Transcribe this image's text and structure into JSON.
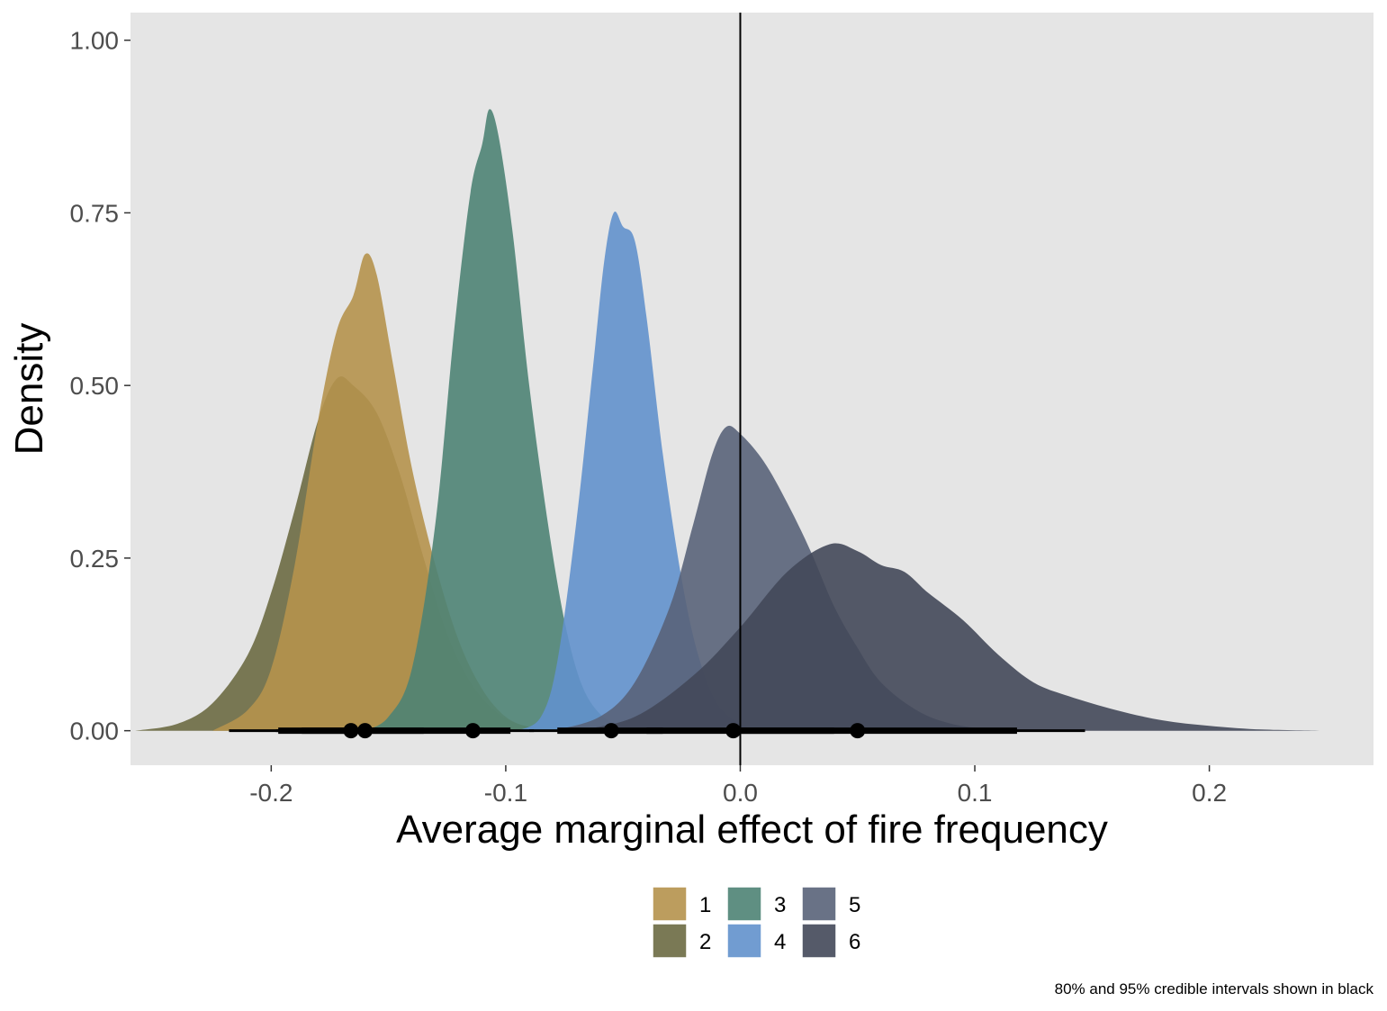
{
  "chart_data": {
    "type": "area",
    "xlabel": "Average marginal effect of fire frequency",
    "ylabel": "Density",
    "caption": "80% and 95% credible intervals shown in black",
    "xlim": [
      -0.26,
      0.27
    ],
    "ylim": [
      -0.05,
      1.04
    ],
    "x_ticks": [
      -0.2,
      -0.1,
      0.0,
      0.1,
      0.2
    ],
    "x_tick_labels": [
      "-0.2",
      "-0.1",
      "0.0",
      "0.1",
      "0.2"
    ],
    "y_ticks": [
      0,
      0.25,
      0.5,
      0.75,
      1.0
    ],
    "y_tick_labels": [
      "0.00",
      "0.25",
      "0.50",
      "0.75",
      "1.00"
    ],
    "vline_x": 0.0,
    "panel_background": "#e5e5e5",
    "grid": false,
    "legend_position": "bottom",
    "series": [
      {
        "name": "2",
        "color": "#6b6a42",
        "points": [
          [
            -0.258,
            0
          ],
          [
            -0.24,
            0.01
          ],
          [
            -0.225,
            0.04
          ],
          [
            -0.21,
            0.11
          ],
          [
            -0.2,
            0.2
          ],
          [
            -0.19,
            0.32
          ],
          [
            -0.18,
            0.45
          ],
          [
            -0.172,
            0.51
          ],
          [
            -0.165,
            0.5
          ],
          [
            -0.155,
            0.46
          ],
          [
            -0.145,
            0.37
          ],
          [
            -0.135,
            0.25
          ],
          [
            -0.125,
            0.14
          ],
          [
            -0.115,
            0.07
          ],
          [
            -0.105,
            0.03
          ],
          [
            -0.095,
            0.01
          ],
          [
            -0.08,
            0
          ]
        ]
      },
      {
        "name": "1",
        "color": "#b5924c",
        "points": [
          [
            -0.225,
            0
          ],
          [
            -0.21,
            0.03
          ],
          [
            -0.2,
            0.09
          ],
          [
            -0.19,
            0.24
          ],
          [
            -0.18,
            0.45
          ],
          [
            -0.172,
            0.58
          ],
          [
            -0.165,
            0.63
          ],
          [
            -0.16,
            0.69
          ],
          [
            -0.155,
            0.66
          ],
          [
            -0.148,
            0.53
          ],
          [
            -0.14,
            0.38
          ],
          [
            -0.13,
            0.24
          ],
          [
            -0.12,
            0.13
          ],
          [
            -0.11,
            0.06
          ],
          [
            -0.1,
            0.02
          ],
          [
            -0.09,
            0.005
          ],
          [
            -0.08,
            0
          ]
        ]
      },
      {
        "name": "3",
        "color": "#4e8374",
        "points": [
          [
            -0.16,
            0
          ],
          [
            -0.15,
            0.02
          ],
          [
            -0.14,
            0.09
          ],
          [
            -0.13,
            0.3
          ],
          [
            -0.122,
            0.58
          ],
          [
            -0.115,
            0.78
          ],
          [
            -0.11,
            0.85
          ],
          [
            -0.107,
            0.9
          ],
          [
            -0.103,
            0.86
          ],
          [
            -0.097,
            0.72
          ],
          [
            -0.09,
            0.5
          ],
          [
            -0.082,
            0.3
          ],
          [
            -0.075,
            0.16
          ],
          [
            -0.068,
            0.07
          ],
          [
            -0.06,
            0.025
          ],
          [
            -0.05,
            0.005
          ],
          [
            -0.04,
            0
          ]
        ]
      },
      {
        "name": "4",
        "color": "#6291cc",
        "points": [
          [
            -0.095,
            0
          ],
          [
            -0.085,
            0.02
          ],
          [
            -0.078,
            0.1
          ],
          [
            -0.07,
            0.3
          ],
          [
            -0.063,
            0.52
          ],
          [
            -0.058,
            0.68
          ],
          [
            -0.054,
            0.75
          ],
          [
            -0.05,
            0.73
          ],
          [
            -0.045,
            0.71
          ],
          [
            -0.04,
            0.6
          ],
          [
            -0.033,
            0.4
          ],
          [
            -0.025,
            0.22
          ],
          [
            -0.018,
            0.11
          ],
          [
            -0.01,
            0.04
          ],
          [
            0.0,
            0.01
          ],
          [
            0.01,
            0
          ]
        ]
      },
      {
        "name": "5",
        "color": "#596379",
        "points": [
          [
            -0.08,
            0
          ],
          [
            -0.06,
            0.02
          ],
          [
            -0.045,
            0.07
          ],
          [
            -0.03,
            0.18
          ],
          [
            -0.02,
            0.3
          ],
          [
            -0.012,
            0.4
          ],
          [
            -0.006,
            0.44
          ],
          [
            0.0,
            0.43
          ],
          [
            0.01,
            0.39
          ],
          [
            0.02,
            0.33
          ],
          [
            0.03,
            0.26
          ],
          [
            0.04,
            0.18
          ],
          [
            0.05,
            0.12
          ],
          [
            0.06,
            0.07
          ],
          [
            0.075,
            0.03
          ],
          [
            0.09,
            0.01
          ],
          [
            0.11,
            0
          ]
        ]
      },
      {
        "name": "6",
        "color": "#434859",
        "points": [
          [
            -0.07,
            0
          ],
          [
            -0.045,
            0.02
          ],
          [
            -0.02,
            0.08
          ],
          [
            0.0,
            0.15
          ],
          [
            0.02,
            0.23
          ],
          [
            0.038,
            0.27
          ],
          [
            0.05,
            0.26
          ],
          [
            0.06,
            0.24
          ],
          [
            0.07,
            0.23
          ],
          [
            0.08,
            0.2
          ],
          [
            0.095,
            0.16
          ],
          [
            0.11,
            0.11
          ],
          [
            0.125,
            0.07
          ],
          [
            0.14,
            0.05
          ],
          [
            0.16,
            0.03
          ],
          [
            0.18,
            0.015
          ],
          [
            0.2,
            0.007
          ],
          [
            0.22,
            0.002
          ],
          [
            0.247,
            0
          ]
        ]
      }
    ],
    "intervals": [
      {
        "series": "1",
        "median": -0.16,
        "ci80": [
          -0.187,
          -0.136
        ],
        "ci95": [
          -0.198,
          -0.098
        ]
      },
      {
        "series": "2",
        "median": -0.166,
        "ci80": [
          -0.197,
          -0.135
        ],
        "ci95": [
          -0.218,
          -0.112
        ]
      },
      {
        "series": "3",
        "median": -0.114,
        "ci80": [
          -0.136,
          -0.098
        ],
        "ci95": [
          -0.146,
          -0.088
        ]
      },
      {
        "series": "4",
        "median": -0.055,
        "ci80": [
          -0.078,
          -0.033
        ],
        "ci95": [
          -0.09,
          -0.022
        ]
      },
      {
        "series": "5",
        "median": -0.003,
        "ci80": [
          -0.04,
          0.04
        ],
        "ci95": [
          -0.07,
          0.065
        ]
      },
      {
        "series": "6",
        "median": 0.05,
        "ci80": [
          0.0,
          0.118
        ],
        "ci95": [
          -0.03,
          0.147
        ]
      }
    ],
    "legend": [
      {
        "label": "1",
        "color": "#b5924c"
      },
      {
        "label": "2",
        "color": "#6b6a42"
      },
      {
        "label": "3",
        "color": "#4e8374"
      },
      {
        "label": "4",
        "color": "#6291cc"
      },
      {
        "label": "5",
        "color": "#596379"
      },
      {
        "label": "6",
        "color": "#434859"
      }
    ]
  }
}
